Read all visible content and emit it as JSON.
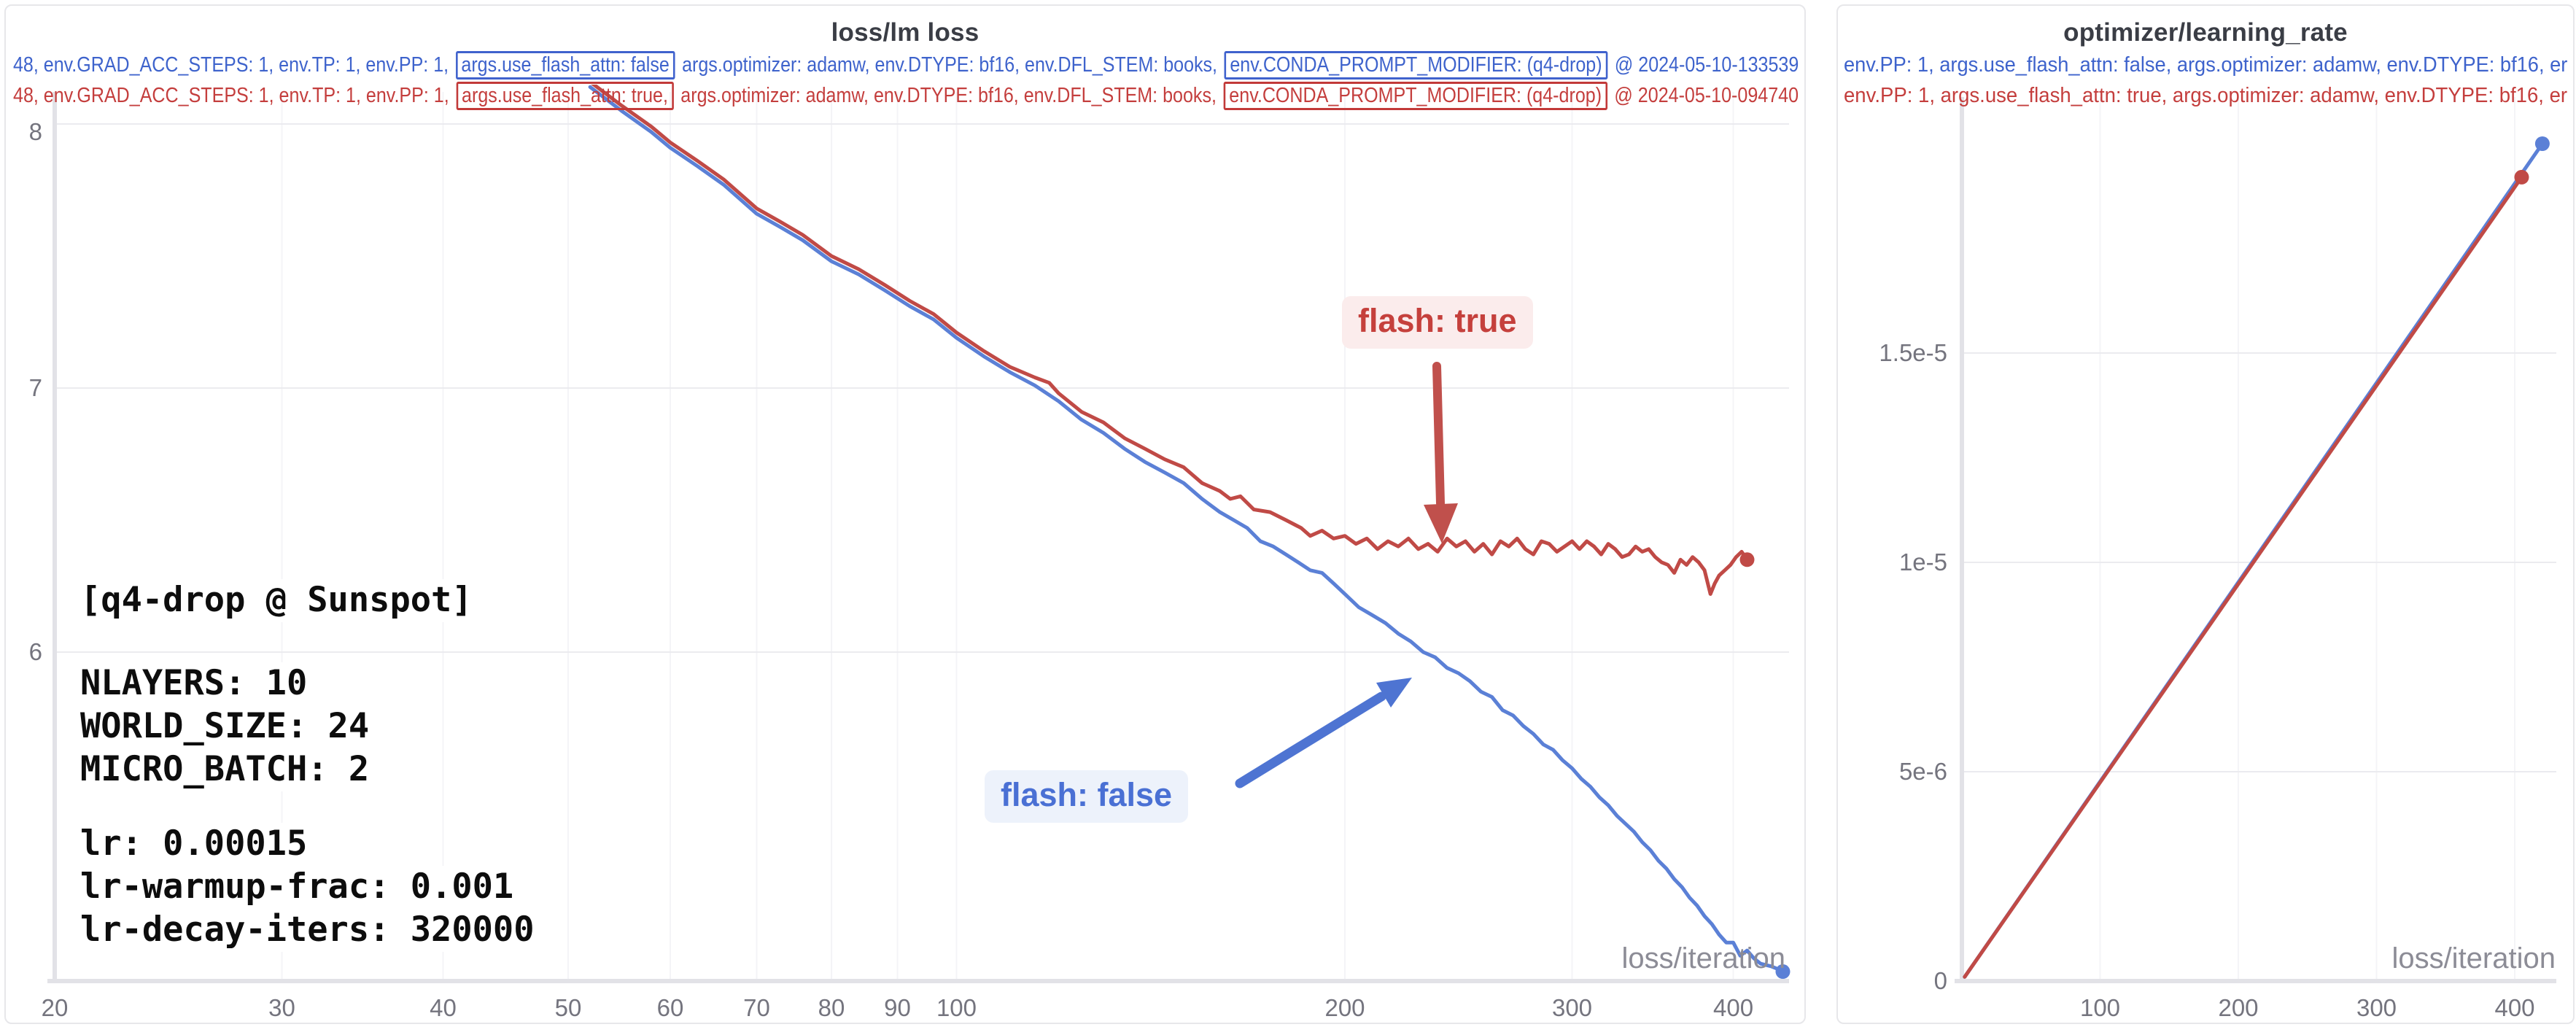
{
  "panels": {
    "loss": {
      "title": "loss/lm loss",
      "watermark": "loss/iteration",
      "legend": [
        {
          "pre": "48, env.GRAD_ACC_STEPS: 1, env.TP: 1, env.PP: 1, ",
          "box1": "args.use_flash_attn: false",
          "mid": " args.optimizer: adamw, env.DTYPE: bf16, env.DFL_STEM: books, ",
          "box2": "env.CONDA_PROMPT_MODIFIER: (q4-drop)",
          "post": " @ 2024-05-10-133539"
        },
        {
          "pre": "48, env.GRAD_ACC_STEPS: 1, env.TP: 1, env.PP: 1, ",
          "box1": "args.use_flash_attn: true,",
          "mid": " args.optimizer: adamw, env.DTYPE: bf16, env.DFL_STEM: books, ",
          "box2": "env.CONDA_PROMPT_MODIFIER: (q4-drop)",
          "post": " @ 2024-05-10-094740"
        }
      ],
      "annotations": {
        "header": "[q4-drop @ Sunspot]",
        "config": [
          "NLAYERS: 10",
          "WORLD_SIZE: 24",
          "MICRO_BATCH: 2"
        ],
        "lr": [
          "lr: 0.00015",
          "lr-warmup-frac: 0.001",
          "lr-decay-iters: 320000"
        ],
        "flash_true": "flash: true",
        "flash_false": "flash: false"
      }
    },
    "lr": {
      "title": "optimizer/learning_rate",
      "watermark": "loss/iteration",
      "legend": [
        {
          "text": "env.PP: 1, args.use_flash_attn: false, args.optimizer: adamw, env.DTYPE: bf16, er"
        },
        {
          "text": "env.PP: 1, args.use_flash_attn: true, args.optimizer: adamw, env.DTYPE: bf16, er"
        }
      ]
    }
  },
  "colors": {
    "blue_line": "#5b80d6",
    "red_line": "#c04a46",
    "grid_h": "#ebebef",
    "grid_v": "#f4f4f7",
    "axis": "#e2e2e7",
    "tick_label": "#74747e"
  },
  "chart_data": [
    {
      "type": "line",
      "title": "loss/lm loss",
      "xlabel": "loss/iteration",
      "ylabel": "lm loss",
      "xscale": "log",
      "xlim": [
        20,
        442
      ],
      "ylim": [
        4.75,
        8.1
      ],
      "xticks": [
        20,
        30,
        40,
        50,
        60,
        70,
        80,
        90,
        100,
        200,
        300,
        400
      ],
      "yticks": [
        6,
        7,
        8
      ],
      "legend_position": "top-left",
      "grid": true,
      "series": [
        {
          "name": "flash: false",
          "color": "#5b80d6",
          "points": [
            [
              52,
              8.14
            ],
            [
              55,
              8.05
            ],
            [
              58,
              7.97
            ],
            [
              60,
              7.91
            ],
            [
              63,
              7.84
            ],
            [
              66,
              7.77
            ],
            [
              70,
              7.66
            ],
            [
              73,
              7.61
            ],
            [
              76,
              7.56
            ],
            [
              80,
              7.48
            ],
            [
              84,
              7.43
            ],
            [
              88,
              7.37
            ],
            [
              92,
              7.31
            ],
            [
              96,
              7.26
            ],
            [
              100,
              7.19
            ],
            [
              105,
              7.12
            ],
            [
              110,
              7.06
            ],
            [
              115,
              7.01
            ],
            [
              120,
              6.95
            ],
            [
              125,
              6.88
            ],
            [
              130,
              6.83
            ],
            [
              135,
              6.77
            ],
            [
              140,
              6.72
            ],
            [
              145,
              6.68
            ],
            [
              150,
              6.64
            ],
            [
              155,
              6.58
            ],
            [
              160,
              6.53
            ],
            [
              164,
              6.5
            ],
            [
              168,
              6.47
            ],
            [
              172,
              6.42
            ],
            [
              176,
              6.4
            ],
            [
              180,
              6.37
            ],
            [
              184,
              6.34
            ],
            [
              188,
              6.31
            ],
            [
              192,
              6.3
            ],
            [
              196,
              6.26
            ],
            [
              200,
              6.22
            ],
            [
              205,
              6.17
            ],
            [
              210,
              6.14
            ],
            [
              215,
              6.11
            ],
            [
              220,
              6.07
            ],
            [
              225,
              6.04
            ],
            [
              230,
              6.0
            ],
            [
              235,
              5.98
            ],
            [
              240,
              5.94
            ],
            [
              245,
              5.92
            ],
            [
              250,
              5.89
            ],
            [
              255,
              5.85
            ],
            [
              260,
              5.83
            ],
            [
              265,
              5.78
            ],
            [
              270,
              5.76
            ],
            [
              275,
              5.72
            ],
            [
              280,
              5.69
            ],
            [
              285,
              5.65
            ],
            [
              290,
              5.63
            ],
            [
              295,
              5.59
            ],
            [
              300,
              5.56
            ],
            [
              305,
              5.52
            ],
            [
              310,
              5.49
            ],
            [
              315,
              5.45
            ],
            [
              320,
              5.42
            ],
            [
              325,
              5.38
            ],
            [
              330,
              5.35
            ],
            [
              335,
              5.32
            ],
            [
              340,
              5.28
            ],
            [
              345,
              5.25
            ],
            [
              350,
              5.21
            ],
            [
              355,
              5.18
            ],
            [
              360,
              5.14
            ],
            [
              365,
              5.11
            ],
            [
              370,
              5.07
            ],
            [
              375,
              5.04
            ],
            [
              380,
              5.0
            ],
            [
              385,
              4.97
            ],
            [
              390,
              4.93
            ],
            [
              395,
              4.9
            ],
            [
              400,
              4.9
            ],
            [
              405,
              4.85
            ],
            [
              410,
              4.87
            ],
            [
              415,
              4.84
            ],
            [
              420,
              4.82
            ],
            [
              428,
              4.81
            ],
            [
              433,
              4.8
            ],
            [
              437,
              4.79
            ]
          ],
          "end_marker": true
        },
        {
          "name": "flash: true",
          "color": "#c04a46",
          "points": [
            [
              52,
              8.16
            ],
            [
              55,
              8.07
            ],
            [
              58,
              7.99
            ],
            [
              60,
              7.93
            ],
            [
              63,
              7.86
            ],
            [
              66,
              7.79
            ],
            [
              70,
              7.68
            ],
            [
              73,
              7.63
            ],
            [
              76,
              7.58
            ],
            [
              80,
              7.5
            ],
            [
              84,
              7.45
            ],
            [
              88,
              7.39
            ],
            [
              92,
              7.33
            ],
            [
              96,
              7.28
            ],
            [
              100,
              7.21
            ],
            [
              105,
              7.14
            ],
            [
              110,
              7.08
            ],
            [
              115,
              7.04
            ],
            [
              118,
              7.02
            ],
            [
              120,
              6.98
            ],
            [
              125,
              6.91
            ],
            [
              130,
              6.87
            ],
            [
              135,
              6.81
            ],
            [
              140,
              6.77
            ],
            [
              145,
              6.73
            ],
            [
              150,
              6.7
            ],
            [
              155,
              6.64
            ],
            [
              160,
              6.61
            ],
            [
              163,
              6.58
            ],
            [
              166,
              6.59
            ],
            [
              170,
              6.54
            ],
            [
              175,
              6.53
            ],
            [
              180,
              6.5
            ],
            [
              185,
              6.47
            ],
            [
              188,
              6.44
            ],
            [
              192,
              6.46
            ],
            [
              196,
              6.43
            ],
            [
              200,
              6.44
            ],
            [
              204,
              6.41
            ],
            [
              208,
              6.43
            ],
            [
              212,
              6.39
            ],
            [
              216,
              6.42
            ],
            [
              220,
              6.4
            ],
            [
              224,
              6.43
            ],
            [
              228,
              6.39
            ],
            [
              232,
              6.41
            ],
            [
              236,
              6.38
            ],
            [
              240,
              6.43
            ],
            [
              244,
              6.4
            ],
            [
              248,
              6.42
            ],
            [
              252,
              6.38
            ],
            [
              256,
              6.41
            ],
            [
              260,
              6.37
            ],
            [
              264,
              6.42
            ],
            [
              268,
              6.4
            ],
            [
              272,
              6.43
            ],
            [
              276,
              6.39
            ],
            [
              280,
              6.37
            ],
            [
              284,
              6.42
            ],
            [
              288,
              6.41
            ],
            [
              292,
              6.38
            ],
            [
              296,
              6.4
            ],
            [
              300,
              6.42
            ],
            [
              304,
              6.39
            ],
            [
              308,
              6.42
            ],
            [
              312,
              6.4
            ],
            [
              316,
              6.37
            ],
            [
              320,
              6.41
            ],
            [
              324,
              6.39
            ],
            [
              328,
              6.36
            ],
            [
              332,
              6.37
            ],
            [
              336,
              6.4
            ],
            [
              340,
              6.38
            ],
            [
              344,
              6.39
            ],
            [
              348,
              6.36
            ],
            [
              352,
              6.34
            ],
            [
              356,
              6.33
            ],
            [
              360,
              6.3
            ],
            [
              364,
              6.35
            ],
            [
              368,
              6.33
            ],
            [
              372,
              6.36
            ],
            [
              376,
              6.34
            ],
            [
              380,
              6.31
            ],
            [
              384,
              6.22
            ],
            [
              387,
              6.26
            ],
            [
              390,
              6.29
            ],
            [
              394,
              6.31
            ],
            [
              398,
              6.33
            ],
            [
              402,
              6.36
            ],
            [
              406,
              6.38
            ],
            [
              410,
              6.35
            ]
          ],
          "end_marker": true
        }
      ]
    },
    {
      "type": "line",
      "title": "optimizer/learning_rate",
      "xlabel": "loss/iteration",
      "ylabel": "learning_rate",
      "xscale": "linear",
      "xlim": [
        0,
        430
      ],
      "ylim": [
        0,
        2.12e-05
      ],
      "xticks": [
        100,
        200,
        300,
        400
      ],
      "yticks": [
        0,
        5e-06,
        1e-05,
        1.5e-05
      ],
      "ytick_labels": [
        "0",
        "5e-6",
        "1e-5",
        "1.5e-5"
      ],
      "grid": true,
      "series": [
        {
          "name": "flash: false",
          "color": "#5b80d6",
          "points": [
            [
              2,
              1e-07
            ],
            [
              420,
              2e-05
            ]
          ],
          "end_marker": true
        },
        {
          "name": "flash: true",
          "color": "#c04a46",
          "points": [
            [
              2,
              1e-07
            ],
            [
              405,
              1.92e-05
            ]
          ],
          "end_marker": true
        }
      ]
    }
  ]
}
